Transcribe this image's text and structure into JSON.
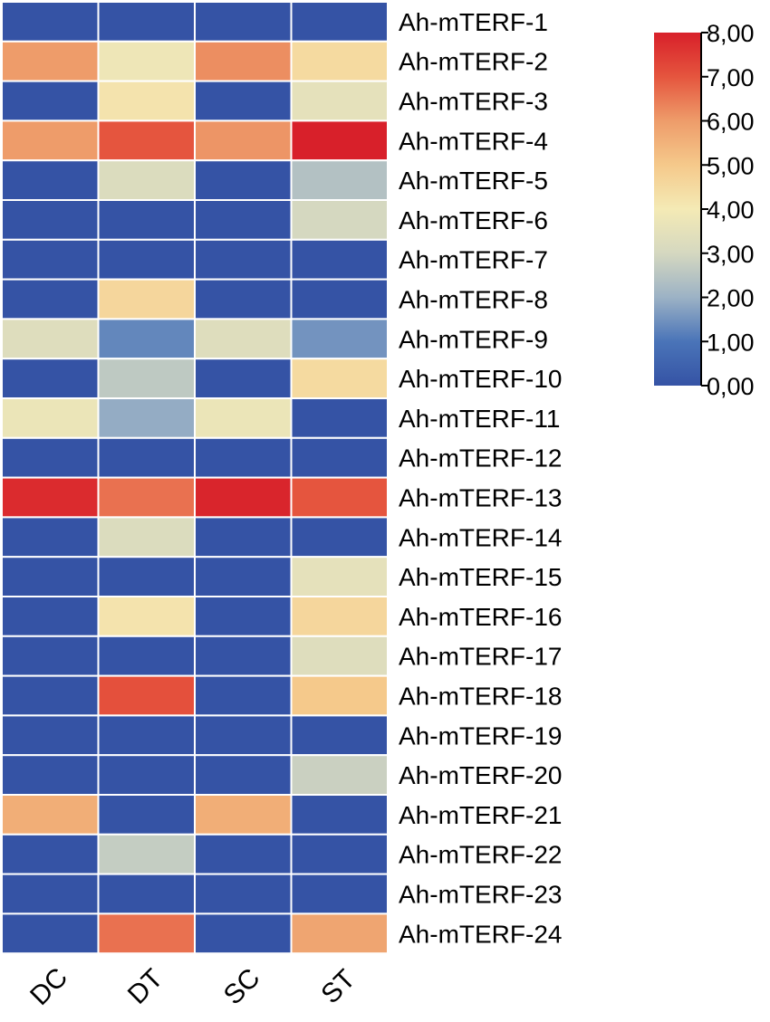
{
  "chart_data": {
    "type": "heatmap",
    "title": "",
    "xlabel": "",
    "ylabel": "",
    "columns": [
      "DC",
      "DT",
      "SC",
      "ST"
    ],
    "rows": [
      "Ah-mTERF-1",
      "Ah-mTERF-2",
      "Ah-mTERF-3",
      "Ah-mTERF-4",
      "Ah-mTERF-5",
      "Ah-mTERF-6",
      "Ah-mTERF-7",
      "Ah-mTERF-8",
      "Ah-mTERF-9",
      "Ah-mTERF-10",
      "Ah-mTERF-11",
      "Ah-mTERF-12",
      "Ah-mTERF-13",
      "Ah-mTERF-14",
      "Ah-mTERF-15",
      "Ah-mTERF-16",
      "Ah-mTERF-17",
      "Ah-mTERF-18",
      "Ah-mTERF-19",
      "Ah-mTERF-20",
      "Ah-mTERF-21",
      "Ah-mTERF-22",
      "Ah-mTERF-23",
      "Ah-mTERF-24"
    ],
    "values": [
      [
        0.0,
        0.0,
        0.0,
        0.0
      ],
      [
        6.0,
        3.8,
        6.2,
        4.5
      ],
      [
        0.0,
        4.2,
        0.0,
        3.5
      ],
      [
        6.0,
        7.0,
        6.1,
        8.0
      ],
      [
        0.0,
        3.2,
        0.0,
        2.4
      ],
      [
        0.0,
        0.0,
        0.0,
        3.0
      ],
      [
        0.0,
        0.0,
        0.0,
        0.0
      ],
      [
        0.0,
        4.6,
        0.0,
        0.0
      ],
      [
        3.3,
        1.3,
        3.3,
        1.5
      ],
      [
        0.0,
        2.6,
        0.0,
        4.5
      ],
      [
        3.7,
        1.9,
        3.7,
        0.0
      ],
      [
        0.0,
        0.0,
        0.0,
        0.0
      ],
      [
        7.8,
        6.6,
        7.9,
        7.0
      ],
      [
        0.0,
        3.2,
        0.0,
        0.0
      ],
      [
        0.0,
        0.0,
        0.0,
        3.5
      ],
      [
        0.0,
        4.2,
        0.0,
        4.6
      ],
      [
        0.0,
        0.0,
        0.0,
        3.3
      ],
      [
        0.0,
        7.1,
        0.0,
        5.0
      ],
      [
        0.0,
        0.0,
        0.0,
        0.0
      ],
      [
        0.0,
        0.0,
        0.0,
        2.8
      ],
      [
        5.6,
        0.0,
        5.6,
        0.0
      ],
      [
        0.0,
        2.7,
        0.0,
        0.0
      ],
      [
        0.0,
        0.0,
        0.0,
        0.0
      ],
      [
        0.0,
        6.6,
        0.0,
        5.8
      ]
    ],
    "color_scale": {
      "min": 0,
      "max": 8,
      "stops": [
        {
          "value": 0,
          "color": "#3553a5"
        },
        {
          "value": 1,
          "color": "#4a74b8"
        },
        {
          "value": 2,
          "color": "#9cb2c5"
        },
        {
          "value": 3,
          "color": "#d5d8c0"
        },
        {
          "value": 4,
          "color": "#f4eab5"
        },
        {
          "value": 5,
          "color": "#f5c98b"
        },
        {
          "value": 6,
          "color": "#ee9c6a"
        },
        {
          "value": 7,
          "color": "#e5553e"
        },
        {
          "value": 8,
          "color": "#d8202a"
        }
      ],
      "ticks": [
        {
          "value": 8,
          "label": "8,00"
        },
        {
          "value": 7,
          "label": "7,00"
        },
        {
          "value": 6,
          "label": "6,00"
        },
        {
          "value": 5,
          "label": "5,00"
        },
        {
          "value": 4,
          "label": "4,00"
        },
        {
          "value": 3,
          "label": "3,00"
        },
        {
          "value": 2,
          "label": "2,00"
        },
        {
          "value": 1,
          "label": "1,00"
        },
        {
          "value": 0,
          "label": "0,00"
        }
      ]
    },
    "grid": true,
    "legend_position": "top-right"
  }
}
